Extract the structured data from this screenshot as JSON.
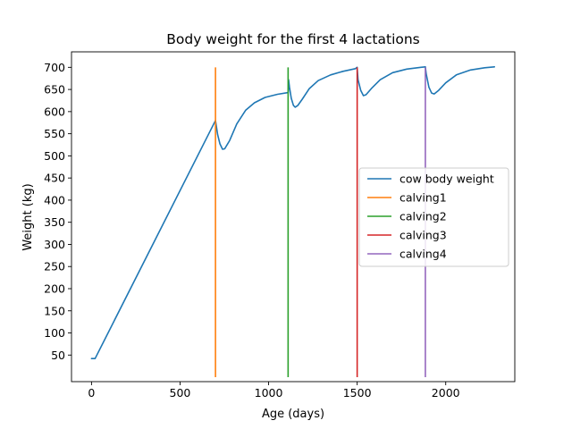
{
  "chart_data": {
    "type": "line",
    "title": "Body weight for the first 4 lactations",
    "xlabel": "Age (days)",
    "ylabel": "Weight (kg)",
    "xlim": [
      -113,
      2390
    ],
    "ylim": [
      -10,
      735
    ],
    "xticks": [
      0,
      500,
      1000,
      1500,
      2000
    ],
    "yticks": [
      50,
      100,
      150,
      200,
      250,
      300,
      350,
      400,
      450,
      500,
      550,
      600,
      650,
      700
    ],
    "grid": false,
    "legend_position": "center right",
    "series": [
      {
        "name": "cow body weight",
        "color": "#1f77b4",
        "kind": "line",
        "points": [
          [
            0,
            42
          ],
          [
            20,
            42
          ],
          [
            700,
            580
          ],
          [
            712,
            548
          ],
          [
            725,
            527
          ],
          [
            740,
            515
          ],
          [
            752,
            516
          ],
          [
            780,
            535
          ],
          [
            820,
            572
          ],
          [
            870,
            603
          ],
          [
            920,
            620
          ],
          [
            980,
            632
          ],
          [
            1050,
            639
          ],
          [
            1110,
            643
          ],
          [
            1113,
            672
          ],
          [
            1118,
            655
          ],
          [
            1128,
            630
          ],
          [
            1140,
            614
          ],
          [
            1150,
            610
          ],
          [
            1165,
            614
          ],
          [
            1190,
            628
          ],
          [
            1230,
            652
          ],
          [
            1280,
            670
          ],
          [
            1350,
            683
          ],
          [
            1420,
            691
          ],
          [
            1490,
            697
          ],
          [
            1500,
            700
          ],
          [
            1505,
            672
          ],
          [
            1520,
            648
          ],
          [
            1535,
            636
          ],
          [
            1550,
            638
          ],
          [
            1580,
            652
          ],
          [
            1630,
            672
          ],
          [
            1700,
            688
          ],
          [
            1780,
            696
          ],
          [
            1860,
            700
          ],
          [
            1885,
            701
          ],
          [
            1890,
            685
          ],
          [
            1905,
            655
          ],
          [
            1920,
            642
          ],
          [
            1935,
            640
          ],
          [
            1960,
            648
          ],
          [
            2000,
            665
          ],
          [
            2060,
            683
          ],
          [
            2140,
            694
          ],
          [
            2220,
            699
          ],
          [
            2275,
            701
          ]
        ]
      },
      {
        "name": "calving1",
        "color": "#ff7f0e",
        "kind": "vline",
        "x": 700,
        "y_range": [
          0,
          700
        ]
      },
      {
        "name": "calving2",
        "color": "#2ca02c",
        "kind": "vline",
        "x": 1110,
        "y_range": [
          0,
          700
        ]
      },
      {
        "name": "calving3",
        "color": "#d62728",
        "kind": "vline",
        "x": 1500,
        "y_range": [
          0,
          700
        ]
      },
      {
        "name": "calving4",
        "color": "#9467bd",
        "kind": "vline",
        "x": 1885,
        "y_range": [
          0,
          700
        ]
      }
    ]
  }
}
